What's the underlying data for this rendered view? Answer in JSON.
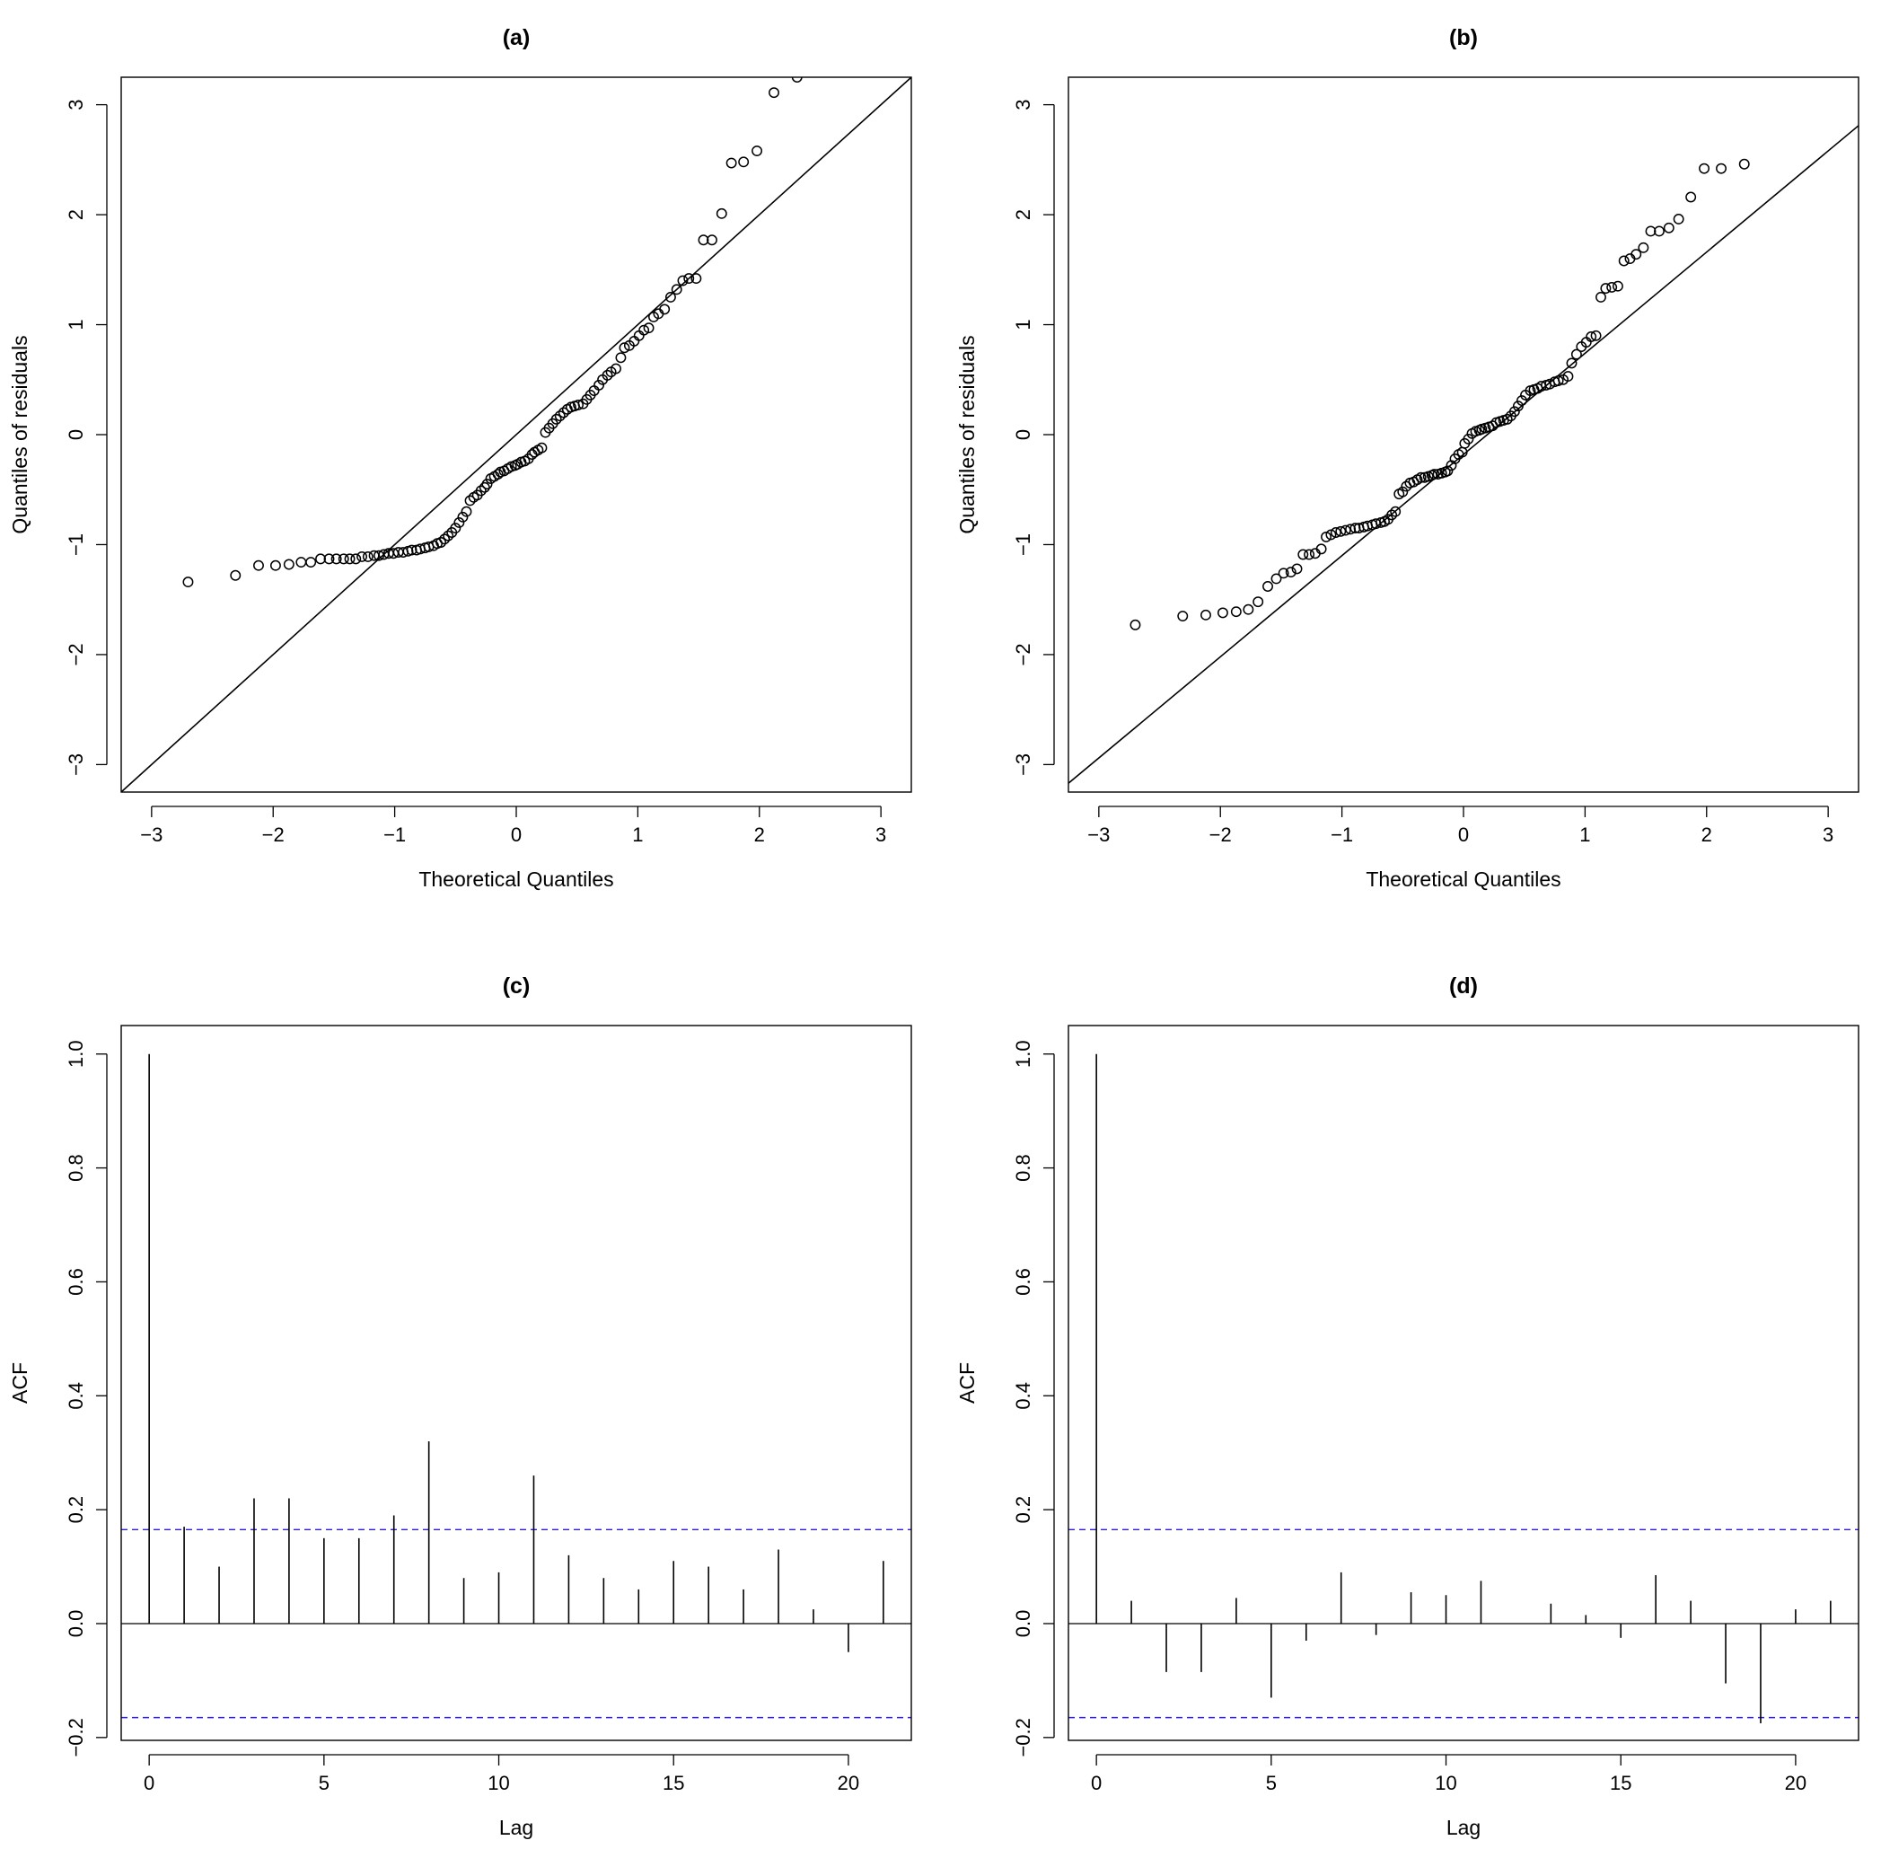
{
  "chart_data": [
    {
      "panel": "a",
      "type": "scatter",
      "title": "(a)",
      "xlabel": "Theoretical Quantiles",
      "ylabel": "Quantiles of residuals",
      "xlim": [
        -3.25,
        3.25
      ],
      "ylim": [
        -3.25,
        3.25
      ],
      "xticks": [
        -3,
        -2,
        -1,
        0,
        1,
        2,
        3
      ],
      "yticks": [
        -3,
        -2,
        -1,
        0,
        1,
        2,
        3
      ],
      "qqline": {
        "intercept": 0.0,
        "slope": 1.0
      },
      "points": [
        [
          -2.7,
          -1.34
        ],
        [
          -2.31,
          -1.28
        ],
        [
          -2.12,
          -1.19
        ],
        [
          -1.98,
          -1.19
        ],
        [
          -1.87,
          -1.18
        ],
        [
          -1.77,
          -1.16
        ],
        [
          -1.69,
          -1.16
        ],
        [
          -1.61,
          -1.13
        ],
        [
          -1.54,
          -1.13
        ],
        [
          -1.48,
          -1.13
        ],
        [
          -1.42,
          -1.13
        ],
        [
          -1.37,
          -1.13
        ],
        [
          -1.32,
          -1.13
        ],
        [
          -1.27,
          -1.11
        ],
        [
          -1.22,
          -1.11
        ],
        [
          -1.17,
          -1.1
        ],
        [
          -1.13,
          -1.1
        ],
        [
          -1.09,
          -1.09
        ],
        [
          -1.05,
          -1.08
        ],
        [
          -1.01,
          -1.08
        ],
        [
          -0.97,
          -1.07
        ],
        [
          -0.93,
          -1.07
        ],
        [
          -0.89,
          -1.06
        ],
        [
          -0.86,
          -1.05
        ],
        [
          -0.82,
          -1.05
        ],
        [
          -0.79,
          -1.04
        ],
        [
          -0.75,
          -1.03
        ],
        [
          -0.72,
          -1.02
        ],
        [
          -0.68,
          -1.01
        ],
        [
          -0.65,
          -0.99
        ],
        [
          -0.62,
          -0.98
        ],
        [
          -0.59,
          -0.95
        ],
        [
          -0.56,
          -0.92
        ],
        [
          -0.53,
          -0.89
        ],
        [
          -0.5,
          -0.85
        ],
        [
          -0.47,
          -0.8
        ],
        [
          -0.44,
          -0.75
        ],
        [
          -0.41,
          -0.7
        ],
        [
          -0.38,
          -0.6
        ],
        [
          -0.35,
          -0.57
        ],
        [
          -0.32,
          -0.55
        ],
        [
          -0.29,
          -0.51
        ],
        [
          -0.26,
          -0.48
        ],
        [
          -0.24,
          -0.45
        ],
        [
          -0.21,
          -0.4
        ],
        [
          -0.18,
          -0.38
        ],
        [
          -0.15,
          -0.36
        ],
        [
          -0.13,
          -0.34
        ],
        [
          -0.1,
          -0.33
        ],
        [
          -0.07,
          -0.31
        ],
        [
          -0.04,
          -0.29
        ],
        [
          -0.01,
          -0.28
        ],
        [
          0.01,
          -0.27
        ],
        [
          0.04,
          -0.25
        ],
        [
          0.07,
          -0.24
        ],
        [
          0.1,
          -0.22
        ],
        [
          0.13,
          -0.18
        ],
        [
          0.15,
          -0.16
        ],
        [
          0.18,
          -0.14
        ],
        [
          0.21,
          -0.12
        ],
        [
          0.24,
          0.02
        ],
        [
          0.27,
          0.06
        ],
        [
          0.3,
          0.1
        ],
        [
          0.33,
          0.14
        ],
        [
          0.36,
          0.17
        ],
        [
          0.39,
          0.2
        ],
        [
          0.42,
          0.23
        ],
        [
          0.45,
          0.25
        ],
        [
          0.48,
          0.26
        ],
        [
          0.51,
          0.27
        ],
        [
          0.55,
          0.28
        ],
        [
          0.58,
          0.32
        ],
        [
          0.61,
          0.36
        ],
        [
          0.64,
          0.4
        ],
        [
          0.68,
          0.45
        ],
        [
          0.71,
          0.5
        ],
        [
          0.75,
          0.54
        ],
        [
          0.78,
          0.57
        ],
        [
          0.82,
          0.6
        ],
        [
          0.86,
          0.7
        ],
        [
          0.89,
          0.79
        ],
        [
          0.93,
          0.81
        ],
        [
          0.97,
          0.85
        ],
        [
          1.01,
          0.9
        ],
        [
          1.05,
          0.95
        ],
        [
          1.09,
          0.97
        ],
        [
          1.13,
          1.07
        ],
        [
          1.17,
          1.1
        ],
        [
          1.22,
          1.14
        ],
        [
          1.27,
          1.25
        ],
        [
          1.32,
          1.32
        ],
        [
          1.37,
          1.4
        ],
        [
          1.42,
          1.42
        ],
        [
          1.48,
          1.42
        ],
        [
          1.54,
          1.77
        ],
        [
          1.61,
          1.77
        ],
        [
          1.69,
          2.01
        ],
        [
          1.77,
          2.47
        ],
        [
          1.87,
          2.48
        ],
        [
          1.98,
          2.58
        ],
        [
          2.12,
          3.11
        ],
        [
          2.31,
          3.25
        ]
      ]
    },
    {
      "panel": "b",
      "type": "scatter",
      "title": "(b)",
      "xlabel": "Theoretical Quantiles",
      "ylabel": "Quantiles of residuals",
      "xlim": [
        -3.25,
        3.25
      ],
      "ylim": [
        -3.25,
        3.25
      ],
      "xticks": [
        -3,
        -2,
        -1,
        0,
        1,
        2,
        3
      ],
      "yticks": [
        -3,
        -2,
        -1,
        0,
        1,
        2,
        3
      ],
      "qqline": {
        "intercept": -0.18,
        "slope": 0.92
      },
      "points": [
        [
          -2.7,
          -1.73
        ],
        [
          -2.31,
          -1.65
        ],
        [
          -2.12,
          -1.64
        ],
        [
          -1.98,
          -1.62
        ],
        [
          -1.87,
          -1.61
        ],
        [
          -1.77,
          -1.59
        ],
        [
          -1.69,
          -1.52
        ],
        [
          -1.61,
          -1.38
        ],
        [
          -1.54,
          -1.31
        ],
        [
          -1.48,
          -1.26
        ],
        [
          -1.42,
          -1.25
        ],
        [
          -1.37,
          -1.22
        ],
        [
          -1.32,
          -1.09
        ],
        [
          -1.27,
          -1.09
        ],
        [
          -1.22,
          -1.08
        ],
        [
          -1.17,
          -1.04
        ],
        [
          -1.13,
          -0.93
        ],
        [
          -1.09,
          -0.91
        ],
        [
          -1.05,
          -0.89
        ],
        [
          -1.01,
          -0.88
        ],
        [
          -0.97,
          -0.87
        ],
        [
          -0.93,
          -0.86
        ],
        [
          -0.89,
          -0.85
        ],
        [
          -0.86,
          -0.85
        ],
        [
          -0.82,
          -0.84
        ],
        [
          -0.79,
          -0.83
        ],
        [
          -0.75,
          -0.82
        ],
        [
          -0.72,
          -0.81
        ],
        [
          -0.68,
          -0.8
        ],
        [
          -0.65,
          -0.79
        ],
        [
          -0.62,
          -0.77
        ],
        [
          -0.59,
          -0.73
        ],
        [
          -0.56,
          -0.7
        ],
        [
          -0.53,
          -0.54
        ],
        [
          -0.5,
          -0.52
        ],
        [
          -0.47,
          -0.47
        ],
        [
          -0.44,
          -0.44
        ],
        [
          -0.41,
          -0.43
        ],
        [
          -0.38,
          -0.41
        ],
        [
          -0.35,
          -0.39
        ],
        [
          -0.32,
          -0.39
        ],
        [
          -0.29,
          -0.38
        ],
        [
          -0.26,
          -0.37
        ],
        [
          -0.24,
          -0.36
        ],
        [
          -0.21,
          -0.36
        ],
        [
          -0.18,
          -0.35
        ],
        [
          -0.15,
          -0.34
        ],
        [
          -0.13,
          -0.33
        ],
        [
          -0.1,
          -0.28
        ],
        [
          -0.07,
          -0.22
        ],
        [
          -0.04,
          -0.18
        ],
        [
          -0.01,
          -0.16
        ],
        [
          0.01,
          -0.08
        ],
        [
          0.04,
          -0.04
        ],
        [
          0.07,
          0.01
        ],
        [
          0.1,
          0.03
        ],
        [
          0.13,
          0.04
        ],
        [
          0.15,
          0.05
        ],
        [
          0.18,
          0.06
        ],
        [
          0.21,
          0.07
        ],
        [
          0.24,
          0.08
        ],
        [
          0.27,
          0.11
        ],
        [
          0.3,
          0.12
        ],
        [
          0.33,
          0.13
        ],
        [
          0.36,
          0.14
        ],
        [
          0.39,
          0.17
        ],
        [
          0.42,
          0.21
        ],
        [
          0.45,
          0.26
        ],
        [
          0.48,
          0.31
        ],
        [
          0.51,
          0.36
        ],
        [
          0.55,
          0.4
        ],
        [
          0.58,
          0.41
        ],
        [
          0.61,
          0.42
        ],
        [
          0.64,
          0.44
        ],
        [
          0.68,
          0.45
        ],
        [
          0.71,
          0.46
        ],
        [
          0.75,
          0.48
        ],
        [
          0.78,
          0.49
        ],
        [
          0.82,
          0.5
        ],
        [
          0.86,
          0.53
        ],
        [
          0.89,
          0.65
        ],
        [
          0.93,
          0.73
        ],
        [
          0.97,
          0.8
        ],
        [
          1.01,
          0.84
        ],
        [
          1.05,
          0.89
        ],
        [
          1.09,
          0.9
        ],
        [
          1.13,
          1.25
        ],
        [
          1.17,
          1.33
        ],
        [
          1.22,
          1.34
        ],
        [
          1.27,
          1.35
        ],
        [
          1.32,
          1.58
        ],
        [
          1.37,
          1.6
        ],
        [
          1.42,
          1.64
        ],
        [
          1.48,
          1.7
        ],
        [
          1.54,
          1.85
        ],
        [
          1.61,
          1.85
        ],
        [
          1.69,
          1.88
        ],
        [
          1.77,
          1.96
        ],
        [
          1.87,
          2.16
        ],
        [
          1.98,
          2.42
        ],
        [
          2.12,
          2.42
        ],
        [
          2.31,
          2.46
        ]
      ]
    },
    {
      "panel": "c",
      "type": "bar",
      "title": "(c)",
      "xlabel": "Lag",
      "ylabel": "ACF",
      "xlim": [
        -0.8,
        21.8
      ],
      "ylim": [
        -0.205,
        1.05
      ],
      "xticks": [
        0,
        5,
        10,
        15,
        20
      ],
      "yticks": [
        -0.2,
        0.0,
        0.2,
        0.4,
        0.6,
        0.8,
        1.0
      ],
      "ytick_labels": [
        "-0.2",
        "0.0",
        "0.2",
        "0.4",
        "0.6",
        "0.8",
        "1.0"
      ],
      "conf_limit": 0.165,
      "lags": [
        0,
        1,
        2,
        3,
        4,
        5,
        6,
        7,
        8,
        9,
        10,
        11,
        12,
        13,
        14,
        15,
        16,
        17,
        18,
        19,
        20,
        21
      ],
      "values": [
        1.0,
        0.17,
        0.1,
        0.22,
        0.22,
        0.15,
        0.15,
        0.19,
        0.32,
        0.08,
        0.09,
        0.26,
        0.12,
        0.08,
        0.06,
        0.11,
        0.1,
        0.06,
        0.13,
        0.025,
        -0.05,
        0.11
      ]
    },
    {
      "panel": "d",
      "type": "bar",
      "title": "(d)",
      "xlabel": "Lag",
      "ylabel": "ACF",
      "xlim": [
        -0.8,
        21.8
      ],
      "ylim": [
        -0.205,
        1.05
      ],
      "xticks": [
        0,
        5,
        10,
        15,
        20
      ],
      "yticks": [
        -0.2,
        0.0,
        0.2,
        0.4,
        0.6,
        0.8,
        1.0
      ],
      "ytick_labels": [
        "-0.2",
        "0.0",
        "0.2",
        "0.4",
        "0.6",
        "0.8",
        "1.0"
      ],
      "conf_limit": 0.165,
      "lags": [
        0,
        1,
        2,
        3,
        4,
        5,
        6,
        7,
        8,
        9,
        10,
        11,
        12,
        13,
        14,
        15,
        16,
        17,
        18,
        19,
        20,
        21
      ],
      "values": [
        1.0,
        0.04,
        -0.085,
        -0.085,
        0.045,
        -0.13,
        -0.03,
        0.09,
        -0.02,
        0.055,
        0.05,
        0.075,
        0.0,
        0.035,
        0.015,
        -0.025,
        0.085,
        0.04,
        -0.105,
        -0.175,
        0.025,
        0.04
      ]
    }
  ]
}
